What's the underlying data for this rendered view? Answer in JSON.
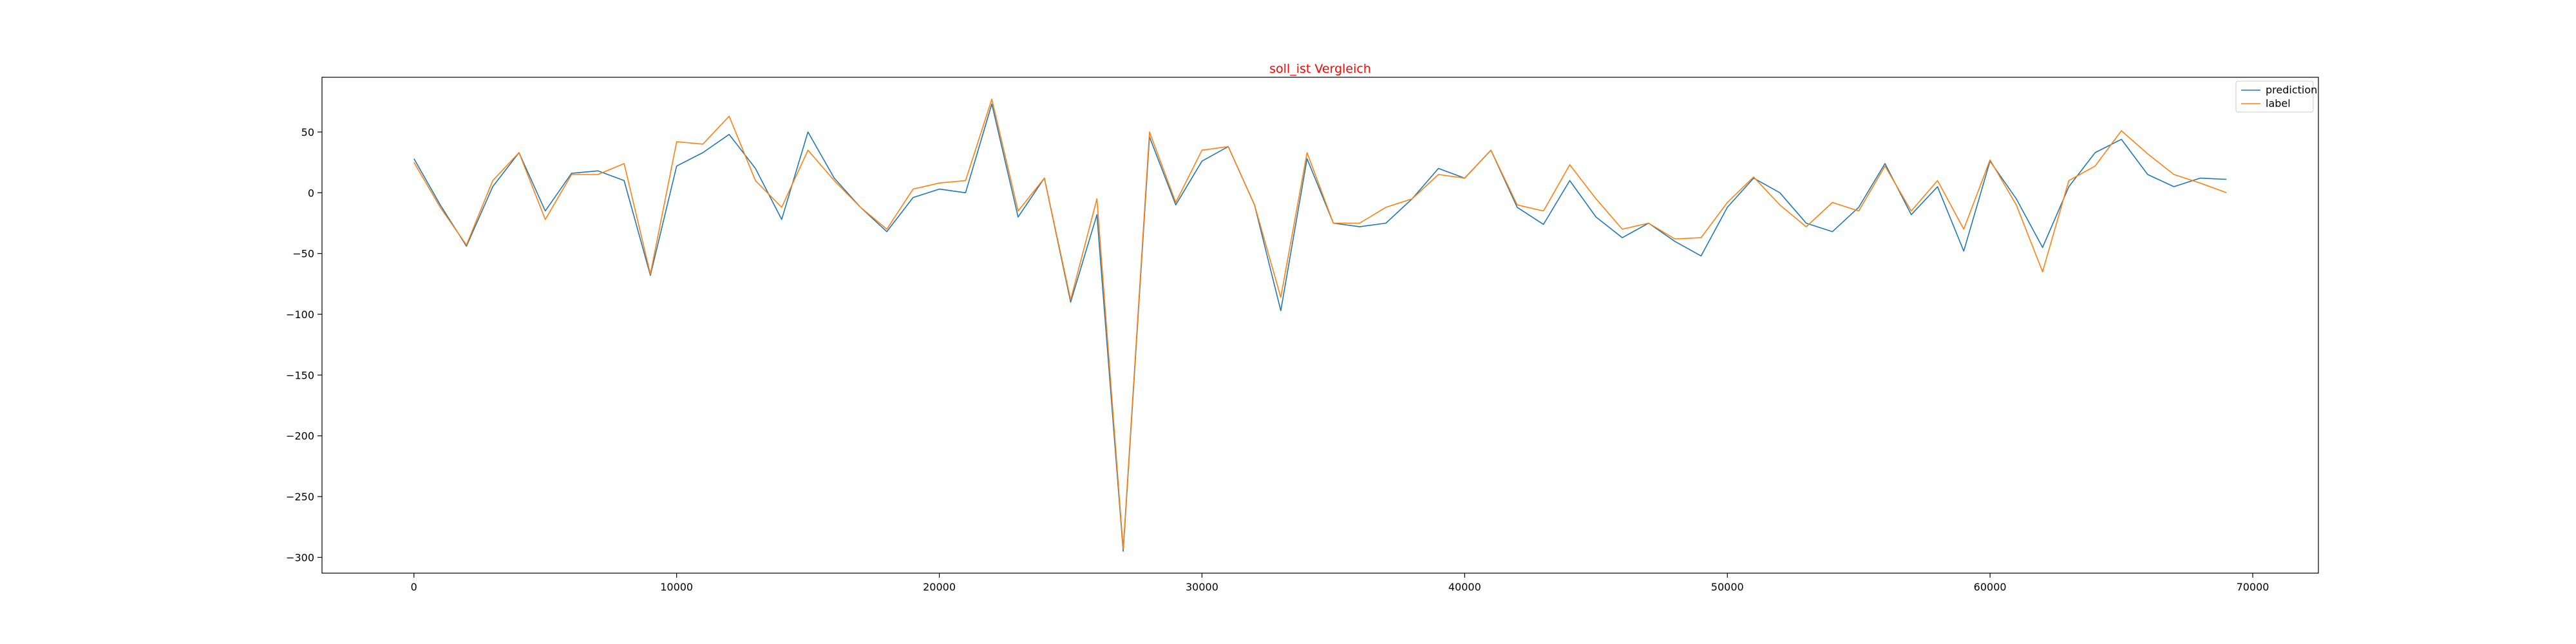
{
  "chart_data": {
    "type": "line",
    "title": "soll_ist Vergleich",
    "title_color": "#ff0000",
    "xlabel": "",
    "ylabel": "",
    "xlim": [
      -3500,
      72500
    ],
    "ylim": [
      -313,
      95
    ],
    "x_ticks": [
      0,
      10000,
      20000,
      30000,
      40000,
      50000,
      60000,
      70000
    ],
    "y_ticks": [
      50,
      0,
      -50,
      -100,
      -150,
      -200,
      -250,
      -300
    ],
    "grid": false,
    "legend_position": "top-right",
    "x": [
      0,
      1000,
      2000,
      3000,
      4000,
      5000,
      6000,
      7000,
      8000,
      9000,
      10000,
      11000,
      12000,
      13000,
      14000,
      15000,
      16000,
      17000,
      18000,
      19000,
      20000,
      21000,
      22000,
      23000,
      24000,
      25000,
      26000,
      27000,
      28000,
      29000,
      30000,
      31000,
      32000,
      33000,
      34000,
      35000,
      36000,
      37000,
      38000,
      39000,
      40000,
      41000,
      42000,
      43000,
      44000,
      45000,
      46000,
      47000,
      48000,
      49000,
      50000,
      51000,
      52000,
      53000,
      54000,
      55000,
      56000,
      57000,
      58000,
      59000,
      60000,
      61000,
      62000,
      63000,
      64000,
      65000,
      66000,
      67000,
      68000,
      69000
    ],
    "series": [
      {
        "name": "prediction",
        "color": "#1f77b4",
        "values": [
          28,
          -10,
          -44,
          5,
          33,
          -15,
          16,
          18,
          10,
          -68,
          22,
          33,
          48,
          20,
          -22,
          50,
          12,
          -12,
          -32,
          -4,
          3,
          0,
          73,
          -20,
          12,
          -90,
          -18,
          -295,
          46,
          -10,
          26,
          38,
          -10,
          -97,
          28,
          -25,
          -28,
          -25,
          -5,
          20,
          12,
          35,
          -12,
          -26,
          10,
          -20,
          -37,
          -25,
          -40,
          -52,
          -12,
          12,
          0,
          -25,
          -32,
          -12,
          24,
          -18,
          5,
          -48,
          26,
          -5,
          -45,
          5,
          33,
          44,
          15,
          5,
          12,
          11
        ]
      },
      {
        "name": "label",
        "color": "#ff7f0e",
        "values": [
          25,
          -12,
          -43,
          10,
          33,
          -22,
          15,
          15,
          24,
          -67,
          42,
          40,
          63,
          10,
          -12,
          35,
          10,
          -12,
          -30,
          3,
          8,
          10,
          77,
          -15,
          12,
          -88,
          -5,
          -293,
          50,
          -8,
          35,
          38,
          -10,
          -86,
          33,
          -25,
          -25,
          -12,
          -5,
          15,
          12,
          35,
          -10,
          -15,
          23,
          -5,
          -30,
          -25,
          -38,
          -37,
          -8,
          13,
          -10,
          -28,
          -8,
          -15,
          22,
          -15,
          10,
          -30,
          27,
          -10,
          -65,
          10,
          22,
          51,
          32,
          15,
          8,
          0
        ]
      }
    ]
  }
}
